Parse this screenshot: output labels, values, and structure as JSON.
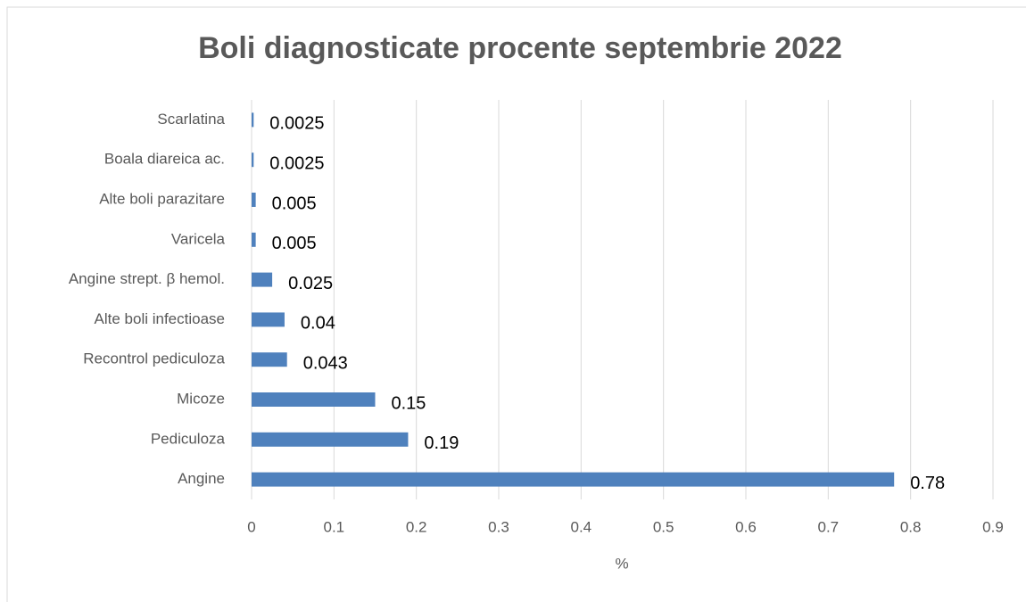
{
  "chart_data": {
    "type": "bar",
    "orientation": "horizontal",
    "title": "Boli diagnosticate procente septembrie 2022",
    "x_label": "%",
    "categories": [
      "Angine",
      "Pediculoza",
      "Micoze",
      "Recontrol pediculoza",
      "Alte boli infectioase",
      "Angine strept. β hemol.",
      "Varicela",
      "Alte boli parazitare",
      "Boala diareica ac.",
      "Scarlatina"
    ],
    "values": [
      0.78,
      0.19,
      0.15,
      0.043,
      0.04,
      0.025,
      0.005,
      0.005,
      0.0025,
      0.0025
    ],
    "color": "#4f81bd",
    "xlim": [
      0,
      0.9
    ],
    "xticks": [
      0,
      0.1,
      0.2,
      0.3,
      0.4,
      0.5,
      0.6,
      0.7,
      0.8,
      0.9
    ],
    "grid": true
  }
}
